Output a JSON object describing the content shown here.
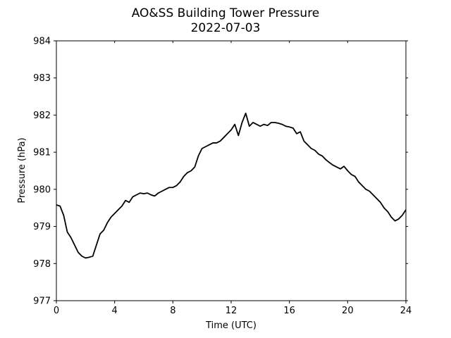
{
  "chart_data": {
    "type": "line",
    "title": "AO&SS Building Tower Pressure",
    "subtitle": "2022-07-03",
    "xlabel": "Time (UTC)",
    "ylabel": "Pressure (hPa)",
    "xlim": [
      0,
      24
    ],
    "ylim": [
      977,
      984
    ],
    "xticks": [
      0,
      4,
      8,
      12,
      16,
      20,
      24
    ],
    "yticks": [
      977,
      978,
      979,
      980,
      981,
      982,
      983,
      984
    ],
    "grid": false,
    "legend": "none",
    "line_color": "#000000",
    "series": [
      {
        "x": [
          0,
          0.25,
          0.5,
          0.75,
          1.0,
          1.25,
          1.5,
          1.75,
          2.0,
          2.25,
          2.5,
          2.75,
          3.0,
          3.25,
          3.5,
          3.75,
          4.0,
          4.25,
          4.5,
          4.75,
          5.0,
          5.25,
          5.5,
          5.75,
          6.0,
          6.25,
          6.5,
          6.75,
          7.0,
          7.25,
          7.5,
          7.75,
          8.0,
          8.25,
          8.5,
          8.75,
          9.0,
          9.25,
          9.5,
          9.75,
          10.0,
          10.25,
          10.5,
          10.75,
          11.0,
          11.25,
          11.5,
          11.75,
          12.0,
          12.25,
          12.5,
          12.75,
          13.0,
          13.25,
          13.5,
          13.75,
          14.0,
          14.25,
          14.5,
          14.75,
          15.0,
          15.25,
          15.5,
          15.75,
          16.0,
          16.25,
          16.5,
          16.75,
          17.0,
          17.25,
          17.5,
          17.75,
          18.0,
          18.25,
          18.5,
          18.75,
          19.0,
          19.25,
          19.5,
          19.75,
          20.0,
          20.25,
          20.5,
          20.75,
          21.0,
          21.25,
          21.5,
          21.75,
          22.0,
          22.25,
          22.5,
          22.75,
          23.0,
          23.25,
          23.5,
          23.75,
          24.0
        ],
        "values": [
          979.58,
          979.55,
          979.3,
          978.85,
          978.7,
          978.5,
          978.3,
          978.2,
          978.15,
          978.17,
          978.2,
          978.5,
          978.8,
          978.9,
          979.1,
          979.25,
          979.35,
          979.45,
          979.55,
          979.7,
          979.65,
          979.8,
          979.85,
          979.9,
          979.88,
          979.9,
          979.85,
          979.82,
          979.9,
          979.95,
          980.0,
          980.05,
          980.05,
          980.1,
          980.2,
          980.35,
          980.45,
          980.5,
          980.6,
          980.9,
          981.1,
          981.15,
          981.2,
          981.25,
          981.25,
          981.3,
          981.4,
          981.5,
          981.6,
          981.75,
          981.45,
          981.8,
          982.05,
          981.7,
          981.8,
          981.75,
          981.7,
          981.75,
          981.72,
          981.8,
          981.8,
          981.78,
          981.75,
          981.7,
          981.68,
          981.65,
          981.5,
          981.55,
          981.3,
          981.2,
          981.1,
          981.05,
          980.95,
          980.9,
          980.8,
          980.72,
          980.65,
          980.6,
          980.55,
          980.62,
          980.5,
          980.4,
          980.35,
          980.2,
          980.1,
          980.0,
          979.95,
          979.85,
          979.75,
          979.65,
          979.5,
          979.4,
          979.25,
          979.15,
          979.2,
          979.3,
          979.45
        ]
      }
    ]
  }
}
